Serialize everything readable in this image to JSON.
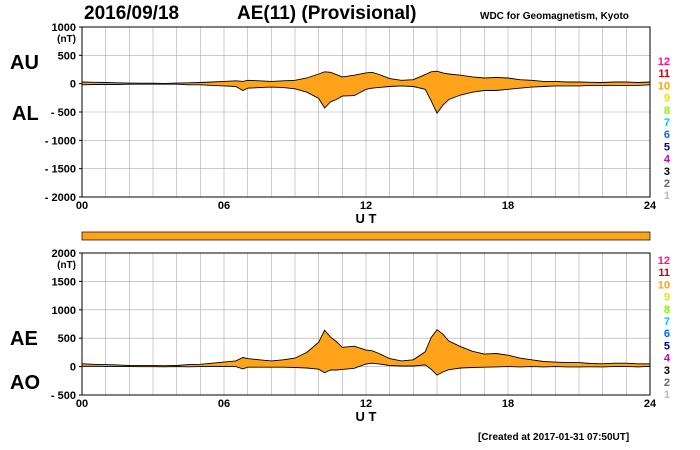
{
  "header": {
    "date": "2016/09/18",
    "title": "AE(11) (Provisional)",
    "source": "WDC for Geomagnetism, Kyoto"
  },
  "footer": "[Created at 2017-01-31 07:50UT]",
  "legend": {
    "numbers": [
      "12",
      "11",
      "10",
      "9",
      "8",
      "7",
      "6",
      "5",
      "4",
      "3",
      "2",
      "1"
    ],
    "colors": [
      "#ff1493",
      "#d40000",
      "#ffa500",
      "#e6e600",
      "#7cfc00",
      "#00c8e6",
      "#0066ff",
      "#00008b",
      "#c800c8",
      "#000000",
      "#666666",
      "#bbbbbb"
    ]
  },
  "colors": {
    "fill": "#ffa31a",
    "line": "#000000",
    "grid": "#aaaaaa"
  },
  "chart_data": [
    {
      "type": "area",
      "series_labels": [
        "AU",
        "AL"
      ],
      "ylabel": "(nT)",
      "xlabel": "U T",
      "ylim": [
        -2000,
        1000
      ],
      "yticks": [
        1000,
        500,
        0,
        -500,
        -1000,
        -1500,
        -2000
      ],
      "ytick_labels": [
        "1000",
        "500",
        "0",
        "- 500",
        "- 1000",
        "- 1500",
        "- 2000"
      ],
      "xlim": [
        0,
        24
      ],
      "xtick_labels": [
        "00",
        "06",
        "12",
        "18",
        "24"
      ],
      "grid": true,
      "time_hours": [
        0,
        0.5,
        1,
        1.5,
        2,
        2.5,
        3,
        3.5,
        4,
        4.5,
        5,
        5.5,
        6,
        6.5,
        6.8,
        7,
        7.5,
        8,
        8.5,
        9,
        9.5,
        10,
        10.25,
        10.5,
        10.75,
        11,
        11.5,
        12,
        12.25,
        12.5,
        13,
        13.5,
        14,
        14.5,
        14.75,
        15,
        15.25,
        15.5,
        16,
        16.5,
        17,
        17.5,
        18,
        18.5,
        19,
        19.5,
        20,
        20.5,
        21,
        21.5,
        22,
        22.5,
        23,
        23.5,
        24
      ],
      "AU": [
        30,
        25,
        20,
        15,
        10,
        8,
        8,
        5,
        10,
        15,
        20,
        30,
        40,
        50,
        40,
        60,
        50,
        40,
        50,
        60,
        100,
        170,
        210,
        200,
        160,
        120,
        150,
        190,
        200,
        170,
        90,
        60,
        70,
        160,
        210,
        220,
        190,
        170,
        150,
        120,
        100,
        110,
        100,
        70,
        60,
        40,
        40,
        30,
        30,
        25,
        20,
        30,
        30,
        20,
        30
      ],
      "AL": [
        -20,
        -15,
        -15,
        -15,
        -10,
        -10,
        -10,
        -10,
        -10,
        -20,
        -20,
        -30,
        -40,
        -50,
        -120,
        -80,
        -70,
        -60,
        -70,
        -90,
        -150,
        -260,
        -430,
        -320,
        -280,
        -220,
        -210,
        -100,
        -80,
        -70,
        -50,
        -40,
        -50,
        -100,
        -300,
        -520,
        -380,
        -280,
        -200,
        -150,
        -120,
        -120,
        -100,
        -80,
        -60,
        -50,
        -40,
        -40,
        -40,
        -30,
        -30,
        -30,
        -30,
        -30,
        -20
      ]
    },
    {
      "type": "area",
      "series_labels": [
        "AE",
        "AO"
      ],
      "ylabel": "(nT)",
      "xlabel": "U T",
      "ylim": [
        -500,
        2000
      ],
      "yticks": [
        2000,
        1500,
        1000,
        500,
        0,
        -500
      ],
      "ytick_labels": [
        "2000",
        "1500",
        "1000",
        "500",
        "0",
        "- 500"
      ],
      "xlim": [
        0,
        24
      ],
      "xtick_labels": [
        "00",
        "06",
        "12",
        "18",
        "24"
      ],
      "grid": true,
      "time_hours": [
        0,
        0.5,
        1,
        1.5,
        2,
        2.5,
        3,
        3.5,
        4,
        4.5,
        5,
        5.5,
        6,
        6.5,
        6.8,
        7,
        7.5,
        8,
        8.5,
        9,
        9.5,
        10,
        10.25,
        10.5,
        10.75,
        11,
        11.5,
        12,
        12.25,
        12.5,
        13,
        13.5,
        14,
        14.5,
        14.75,
        15,
        15.25,
        15.5,
        16,
        16.5,
        17,
        17.5,
        18,
        18.5,
        19,
        19.5,
        20,
        20.5,
        21,
        21.5,
        22,
        22.5,
        23,
        23.5,
        24
      ],
      "AE": [
        50,
        40,
        35,
        30,
        20,
        18,
        18,
        15,
        20,
        35,
        40,
        60,
        80,
        100,
        160,
        140,
        120,
        100,
        120,
        150,
        250,
        430,
        640,
        520,
        440,
        340,
        360,
        290,
        280,
        240,
        140,
        100,
        120,
        260,
        510,
        650,
        570,
        450,
        350,
        270,
        220,
        230,
        200,
        150,
        120,
        90,
        80,
        70,
        70,
        55,
        50,
        60,
        60,
        50,
        50
      ],
      "AO": [
        5,
        5,
        3,
        0,
        0,
        -1,
        -1,
        -3,
        0,
        -3,
        0,
        0,
        0,
        0,
        -40,
        -10,
        -10,
        -10,
        -10,
        -15,
        -25,
        -45,
        -110,
        -60,
        -60,
        -50,
        -30,
        45,
        60,
        50,
        20,
        10,
        10,
        30,
        -45,
        -150,
        -95,
        -55,
        -25,
        -15,
        -10,
        -5,
        0,
        -5,
        0,
        -5,
        0,
        -5,
        -5,
        -3,
        -5,
        0,
        0,
        -5,
        5
      ]
    }
  ]
}
